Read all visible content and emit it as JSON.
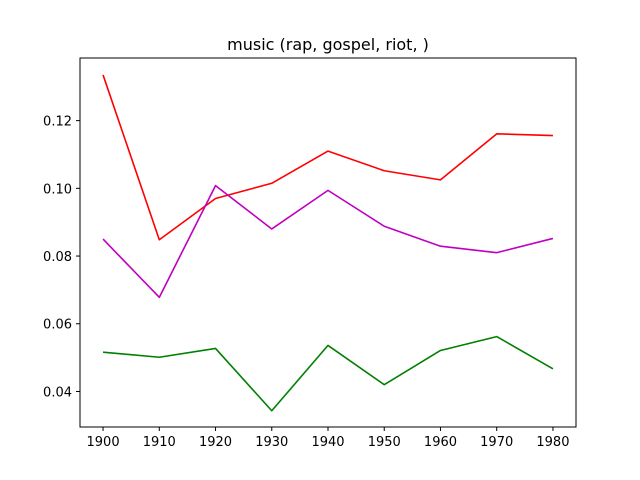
{
  "chart_data": {
    "type": "line",
    "title": "music (rap, gospel, riot, )",
    "xlabel": "",
    "ylabel": "",
    "x": [
      1900,
      1910,
      1920,
      1930,
      1940,
      1950,
      1960,
      1970,
      1980
    ],
    "xticks": [
      "1900",
      "1910",
      "1920",
      "1930",
      "1940",
      "1950",
      "1960",
      "1970",
      "1980"
    ],
    "yticks": [
      "0.04",
      "0.06",
      "0.08",
      "0.10",
      "0.12"
    ],
    "ytick_values": [
      0.04,
      0.06,
      0.08,
      0.1,
      0.12
    ],
    "xlim": [
      1895.9,
      1984.1
    ],
    "ylim": [
      0.0295,
      0.1385
    ],
    "grid": false,
    "series": [
      {
        "name": "red",
        "color": "#ff0000",
        "values": [
          0.1335,
          0.0848,
          0.097,
          0.1015,
          0.111,
          0.1052,
          0.1025,
          0.1161,
          0.1156
        ]
      },
      {
        "name": "magenta",
        "color": "#bf00bf",
        "values": [
          0.085,
          0.0678,
          0.1008,
          0.088,
          0.0994,
          0.0888,
          0.0829,
          0.081,
          0.0852
        ]
      },
      {
        "name": "green",
        "color": "#008000",
        "values": [
          0.0516,
          0.0501,
          0.0527,
          0.0343,
          0.0536,
          0.042,
          0.0521,
          0.0562,
          0.0467
        ]
      }
    ]
  }
}
